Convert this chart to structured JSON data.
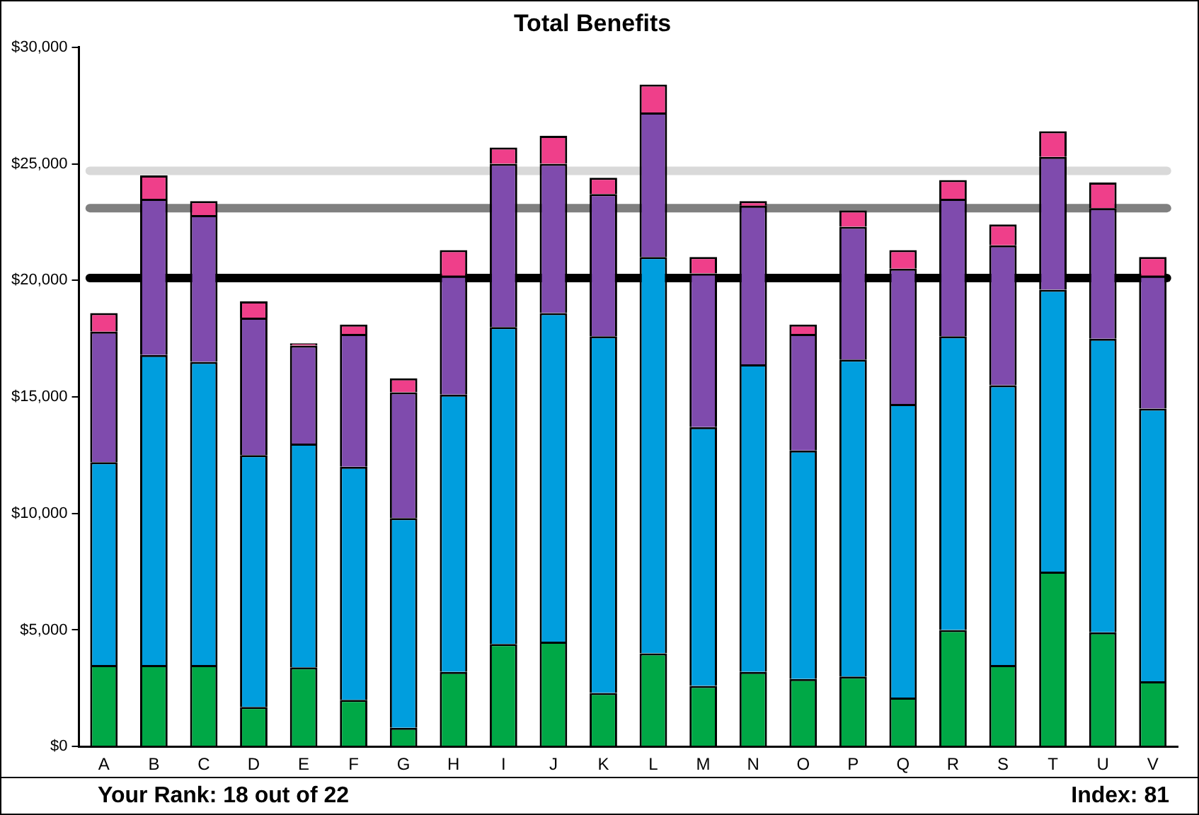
{
  "chart_data": {
    "type": "bar",
    "title": "Total Benefits",
    "stacked": true,
    "categories": [
      "A",
      "B",
      "C",
      "D",
      "E",
      "F",
      "G",
      "H",
      "I",
      "J",
      "K",
      "L",
      "M",
      "N",
      "O",
      "P",
      "Q",
      "R",
      "S",
      "T",
      "U",
      "V"
    ],
    "series": [
      {
        "color": "#00a846",
        "values": [
          3500,
          3500,
          3500,
          1700,
          3400,
          2000,
          800,
          3200,
          4400,
          4500,
          2300,
          4000,
          2600,
          3200,
          2900,
          3000,
          2100,
          5000,
          3500,
          7500,
          4900,
          2800
        ]
      },
      {
        "color": "#009ede",
        "values": [
          8700,
          13300,
          13000,
          10800,
          9600,
          10000,
          9000,
          11900,
          13600,
          14100,
          15300,
          17000,
          11100,
          13200,
          9800,
          13600,
          12600,
          12600,
          12000,
          12100,
          12600,
          11700
        ]
      },
      {
        "color": "#7f4bad",
        "values": [
          5600,
          6700,
          6300,
          5900,
          4200,
          5700,
          5400,
          5100,
          7000,
          6400,
          6100,
          6200,
          6600,
          6800,
          5000,
          5700,
          5800,
          5900,
          6000,
          5700,
          5600,
          5700
        ]
      },
      {
        "color": "#ef3f8a",
        "values": [
          800,
          1000,
          600,
          700,
          100,
          400,
          600,
          1100,
          700,
          1200,
          700,
          1200,
          700,
          200,
          400,
          700,
          800,
          800,
          900,
          1100,
          1100,
          800
        ]
      }
    ],
    "ylim": [
      0,
      30000
    ],
    "yticks": [
      {
        "value": 0,
        "label": "$0"
      },
      {
        "value": 5000,
        "label": "$5,000"
      },
      {
        "value": 10000,
        "label": "$10,000"
      },
      {
        "value": 15000,
        "label": "$15,000"
      },
      {
        "value": 20000,
        "label": "$20,000"
      },
      {
        "value": 25000,
        "label": "$25,000"
      },
      {
        "value": 30000,
        "label": "$30,000"
      }
    ],
    "ref_lines": [
      {
        "axis": "y",
        "value": 24700,
        "color": "#d9d9d9"
      },
      {
        "axis": "y",
        "value": 23100,
        "color": "#808080"
      },
      {
        "axis": "y",
        "value": 20100,
        "color": "#000000"
      }
    ],
    "annotations": [
      "Your Rank: 18 out of 22",
      "Index: 81"
    ],
    "grid": false,
    "legend": false
  }
}
